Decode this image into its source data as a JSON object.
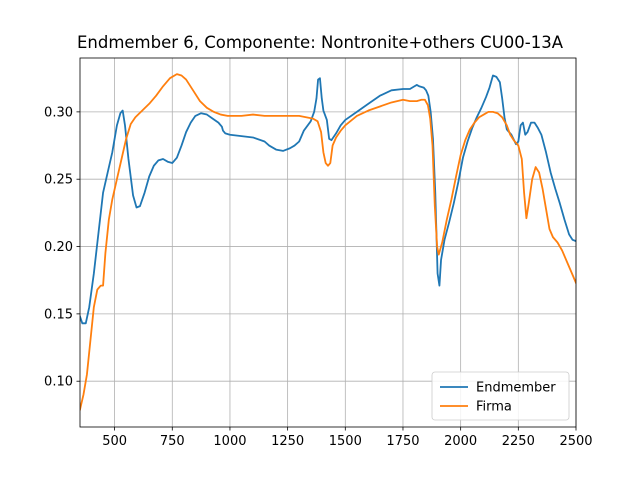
{
  "chart_data": {
    "type": "line",
    "title": "Endmember 6, Componente: Nontronite+others CU00-13A",
    "xlabel": "",
    "ylabel": "",
    "xlim": [
      350,
      2500
    ],
    "ylim": [
      0.066,
      0.34
    ],
    "xticks": [
      500,
      750,
      1000,
      1250,
      1500,
      1750,
      2000,
      2250,
      2500
    ],
    "xtick_labels": [
      "500",
      "750",
      "1000",
      "1250",
      "1500",
      "1750",
      "2000",
      "2250",
      "2500"
    ],
    "yticks": [
      0.1,
      0.15,
      0.2,
      0.25,
      0.3
    ],
    "ytick_labels": [
      "0.10",
      "0.15",
      "0.20",
      "0.25",
      "0.30"
    ],
    "grid": true,
    "legend_position": "lower-right",
    "series": [
      {
        "name": "Endmember",
        "color": "#1f77b4",
        "points": [
          [
            350,
            0.148
          ],
          [
            360,
            0.143
          ],
          [
            375,
            0.143
          ],
          [
            390,
            0.155
          ],
          [
            410,
            0.18
          ],
          [
            430,
            0.21
          ],
          [
            450,
            0.24
          ],
          [
            470,
            0.255
          ],
          [
            490,
            0.27
          ],
          [
            510,
            0.29
          ],
          [
            525,
            0.299
          ],
          [
            535,
            0.301
          ],
          [
            545,
            0.29
          ],
          [
            560,
            0.265
          ],
          [
            580,
            0.238
          ],
          [
            595,
            0.229
          ],
          [
            610,
            0.23
          ],
          [
            630,
            0.24
          ],
          [
            650,
            0.252
          ],
          [
            670,
            0.26
          ],
          [
            690,
            0.264
          ],
          [
            710,
            0.265
          ],
          [
            730,
            0.263
          ],
          [
            750,
            0.262
          ],
          [
            770,
            0.266
          ],
          [
            790,
            0.275
          ],
          [
            810,
            0.285
          ],
          [
            830,
            0.292
          ],
          [
            850,
            0.297
          ],
          [
            875,
            0.299
          ],
          [
            900,
            0.298
          ],
          [
            925,
            0.295
          ],
          [
            950,
            0.292
          ],
          [
            965,
            0.289
          ],
          [
            970,
            0.286
          ],
          [
            980,
            0.284
          ],
          [
            1000,
            0.283
          ],
          [
            1050,
            0.282
          ],
          [
            1100,
            0.281
          ],
          [
            1150,
            0.278
          ],
          [
            1170,
            0.275
          ],
          [
            1200,
            0.272
          ],
          [
            1230,
            0.271
          ],
          [
            1260,
            0.273
          ],
          [
            1280,
            0.275
          ],
          [
            1300,
            0.278
          ],
          [
            1320,
            0.286
          ],
          [
            1350,
            0.293
          ],
          [
            1365,
            0.3
          ],
          [
            1375,
            0.31
          ],
          [
            1382,
            0.324
          ],
          [
            1390,
            0.325
          ],
          [
            1398,
            0.31
          ],
          [
            1405,
            0.301
          ],
          [
            1420,
            0.294
          ],
          [
            1430,
            0.28
          ],
          [
            1440,
            0.279
          ],
          [
            1460,
            0.284
          ],
          [
            1480,
            0.29
          ],
          [
            1500,
            0.294
          ],
          [
            1550,
            0.3
          ],
          [
            1600,
            0.306
          ],
          [
            1650,
            0.312
          ],
          [
            1700,
            0.316
          ],
          [
            1750,
            0.317
          ],
          [
            1780,
            0.317
          ],
          [
            1800,
            0.319
          ],
          [
            1810,
            0.32
          ],
          [
            1820,
            0.319
          ],
          [
            1840,
            0.318
          ],
          [
            1850,
            0.316
          ],
          [
            1860,
            0.312
          ],
          [
            1870,
            0.3
          ],
          [
            1880,
            0.28
          ],
          [
            1890,
            0.24
          ],
          [
            1900,
            0.18
          ],
          [
            1908,
            0.171
          ],
          [
            1915,
            0.19
          ],
          [
            1930,
            0.205
          ],
          [
            1950,
            0.218
          ],
          [
            1970,
            0.232
          ],
          [
            1990,
            0.248
          ],
          [
            2010,
            0.266
          ],
          [
            2030,
            0.278
          ],
          [
            2050,
            0.288
          ],
          [
            2070,
            0.296
          ],
          [
            2090,
            0.303
          ],
          [
            2110,
            0.311
          ],
          [
            2125,
            0.318
          ],
          [
            2140,
            0.327
          ],
          [
            2155,
            0.326
          ],
          [
            2170,
            0.322
          ],
          [
            2180,
            0.31
          ],
          [
            2190,
            0.296
          ],
          [
            2200,
            0.287
          ],
          [
            2220,
            0.283
          ],
          [
            2240,
            0.276
          ],
          [
            2250,
            0.278
          ],
          [
            2260,
            0.29
          ],
          [
            2270,
            0.292
          ],
          [
            2280,
            0.283
          ],
          [
            2290,
            0.285
          ],
          [
            2305,
            0.292
          ],
          [
            2320,
            0.292
          ],
          [
            2335,
            0.288
          ],
          [
            2350,
            0.283
          ],
          [
            2370,
            0.27
          ],
          [
            2390,
            0.255
          ],
          [
            2410,
            0.243
          ],
          [
            2430,
            0.232
          ],
          [
            2450,
            0.22
          ],
          [
            2470,
            0.209
          ],
          [
            2485,
            0.205
          ],
          [
            2500,
            0.204
          ]
        ]
      },
      {
        "name": "Firma",
        "color": "#ff7f0e",
        "points": [
          [
            350,
            0.079
          ],
          [
            365,
            0.09
          ],
          [
            380,
            0.105
          ],
          [
            395,
            0.13
          ],
          [
            410,
            0.155
          ],
          [
            425,
            0.168
          ],
          [
            440,
            0.171
          ],
          [
            450,
            0.171
          ],
          [
            460,
            0.195
          ],
          [
            475,
            0.22
          ],
          [
            490,
            0.235
          ],
          [
            510,
            0.25
          ],
          [
            530,
            0.265
          ],
          [
            550,
            0.28
          ],
          [
            570,
            0.291
          ],
          [
            590,
            0.296
          ],
          [
            620,
            0.301
          ],
          [
            650,
            0.306
          ],
          [
            680,
            0.312
          ],
          [
            710,
            0.319
          ],
          [
            740,
            0.325
          ],
          [
            770,
            0.328
          ],
          [
            790,
            0.327
          ],
          [
            810,
            0.324
          ],
          [
            840,
            0.316
          ],
          [
            870,
            0.308
          ],
          [
            900,
            0.303
          ],
          [
            930,
            0.3
          ],
          [
            960,
            0.298
          ],
          [
            990,
            0.297
          ],
          [
            1050,
            0.297
          ],
          [
            1100,
            0.298
          ],
          [
            1150,
            0.297
          ],
          [
            1200,
            0.297
          ],
          [
            1250,
            0.297
          ],
          [
            1300,
            0.297
          ],
          [
            1330,
            0.296
          ],
          [
            1360,
            0.295
          ],
          [
            1380,
            0.293
          ],
          [
            1395,
            0.285
          ],
          [
            1405,
            0.27
          ],
          [
            1415,
            0.262
          ],
          [
            1425,
            0.26
          ],
          [
            1435,
            0.262
          ],
          [
            1445,
            0.275
          ],
          [
            1460,
            0.281
          ],
          [
            1480,
            0.286
          ],
          [
            1500,
            0.29
          ],
          [
            1550,
            0.297
          ],
          [
            1600,
            0.301
          ],
          [
            1650,
            0.304
          ],
          [
            1700,
            0.307
          ],
          [
            1750,
            0.309
          ],
          [
            1780,
            0.308
          ],
          [
            1810,
            0.308
          ],
          [
            1830,
            0.309
          ],
          [
            1845,
            0.309
          ],
          [
            1858,
            0.305
          ],
          [
            1868,
            0.295
          ],
          [
            1878,
            0.275
          ],
          [
            1888,
            0.23
          ],
          [
            1898,
            0.2
          ],
          [
            1905,
            0.194
          ],
          [
            1920,
            0.203
          ],
          [
            1940,
            0.22
          ],
          [
            1960,
            0.235
          ],
          [
            1980,
            0.252
          ],
          [
            2000,
            0.268
          ],
          [
            2020,
            0.279
          ],
          [
            2040,
            0.287
          ],
          [
            2060,
            0.292
          ],
          [
            2080,
            0.296
          ],
          [
            2100,
            0.298
          ],
          [
            2120,
            0.3
          ],
          [
            2140,
            0.3
          ],
          [
            2160,
            0.299
          ],
          [
            2180,
            0.296
          ],
          [
            2200,
            0.29
          ],
          [
            2215,
            0.283
          ],
          [
            2230,
            0.279
          ],
          [
            2250,
            0.275
          ],
          [
            2265,
            0.265
          ],
          [
            2275,
            0.24
          ],
          [
            2285,
            0.221
          ],
          [
            2295,
            0.232
          ],
          [
            2310,
            0.25
          ],
          [
            2325,
            0.259
          ],
          [
            2340,
            0.255
          ],
          [
            2355,
            0.243
          ],
          [
            2370,
            0.228
          ],
          [
            2385,
            0.213
          ],
          [
            2400,
            0.207
          ],
          [
            2420,
            0.203
          ],
          [
            2440,
            0.197
          ],
          [
            2460,
            0.189
          ],
          [
            2480,
            0.181
          ],
          [
            2500,
            0.173
          ]
        ]
      }
    ]
  }
}
